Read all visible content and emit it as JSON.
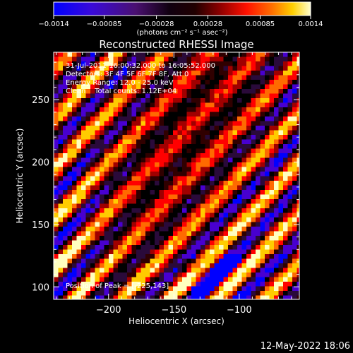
{
  "chart_data": {
    "type": "heatmap",
    "title": "Reconstructed RHESSI Image",
    "xlabel": "Heliocentric X (arcsec)",
    "ylabel": "Heliocentric Y (arcsec)",
    "xlim": [
      -242,
      -54
    ],
    "ylim": [
      90,
      288
    ],
    "x_ticks": [
      -200,
      -150,
      -100
    ],
    "x_tick_labels": [
      "−200",
      "−150",
      "−100"
    ],
    "y_ticks": [
      100,
      150,
      200,
      250
    ],
    "y_tick_labels": [
      "100",
      "150",
      "200",
      "250"
    ],
    "colorbar": {
      "min": -0.0014,
      "max": 0.0014,
      "ticks": [
        -0.0014,
        -0.00085,
        -0.00028,
        0.00028,
        0.00085,
        0.0014
      ],
      "tick_labels": [
        "−0.0014",
        "−0.00085",
        "−0.00028",
        "0.00028",
        "0.00085",
        "0.0014"
      ],
      "unit_label": "(photons cm⁻² s⁻¹ asec⁻²)",
      "colors": [
        "#0000ff",
        "#4800d0",
        "#2a0a3a",
        "#000000",
        "#300000",
        "#a00000",
        "#ff0000",
        "#ff6a00",
        "#ffcc00",
        "#ffffc0"
      ]
    },
    "annotations": [
      "31-Jul-2011 16:00:32.000 to 16:05:52.000",
      "Detectors: 3F 4F 5F 6F 7F 8F, Att 0",
      "Energy Range: 12.0 - 25.0 keV",
      "Clean    Total counts: 1.12E+04"
    ],
    "peak_label": "Position of Peak = [-225,143]",
    "peak": [
      -225,
      143
    ],
    "grid": false
  },
  "footer": {
    "timestamp": "12-May-2022 18:06"
  }
}
